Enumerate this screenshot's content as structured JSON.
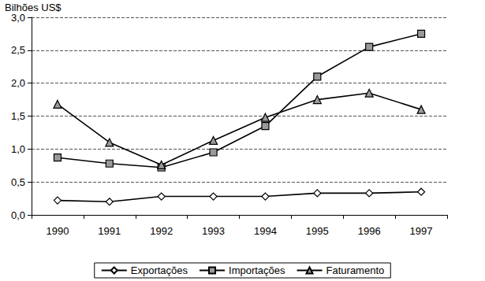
{
  "chart_data": {
    "type": "line",
    "y_label": "Bilhões US$",
    "categories": [
      "1990",
      "1991",
      "1992",
      "1993",
      "1994",
      "1995",
      "1996",
      "1997"
    ],
    "series": [
      {
        "name": "Exportações",
        "color": "#000000",
        "marker": "diamond",
        "values": [
          0.22,
          0.2,
          0.28,
          0.28,
          0.28,
          0.33,
          0.33,
          0.35
        ]
      },
      {
        "name": "Importações",
        "color": "#000000",
        "marker": "square",
        "values": [
          0.87,
          0.78,
          0.72,
          0.95,
          1.35,
          2.1,
          2.55,
          2.75
        ]
      },
      {
        "name": "Faturamento",
        "color": "#000000",
        "marker": "triangle",
        "values": [
          1.68,
          1.1,
          0.76,
          1.13,
          1.48,
          1.75,
          1.85,
          1.6
        ]
      }
    ],
    "ylim": [
      0,
      3
    ],
    "yticks": [
      {
        "value": 0,
        "label": "0,0"
      },
      {
        "value": 0.5,
        "label": "0,5"
      },
      {
        "value": 1,
        "label": "1,0"
      },
      {
        "value": 1.5,
        "label": "1,5"
      },
      {
        "value": 2,
        "label": "2,0"
      },
      {
        "value": 2.5,
        "label": "2,5"
      },
      {
        "value": 3,
        "label": "3,0"
      }
    ],
    "grid": true,
    "legend": "bottom"
  }
}
